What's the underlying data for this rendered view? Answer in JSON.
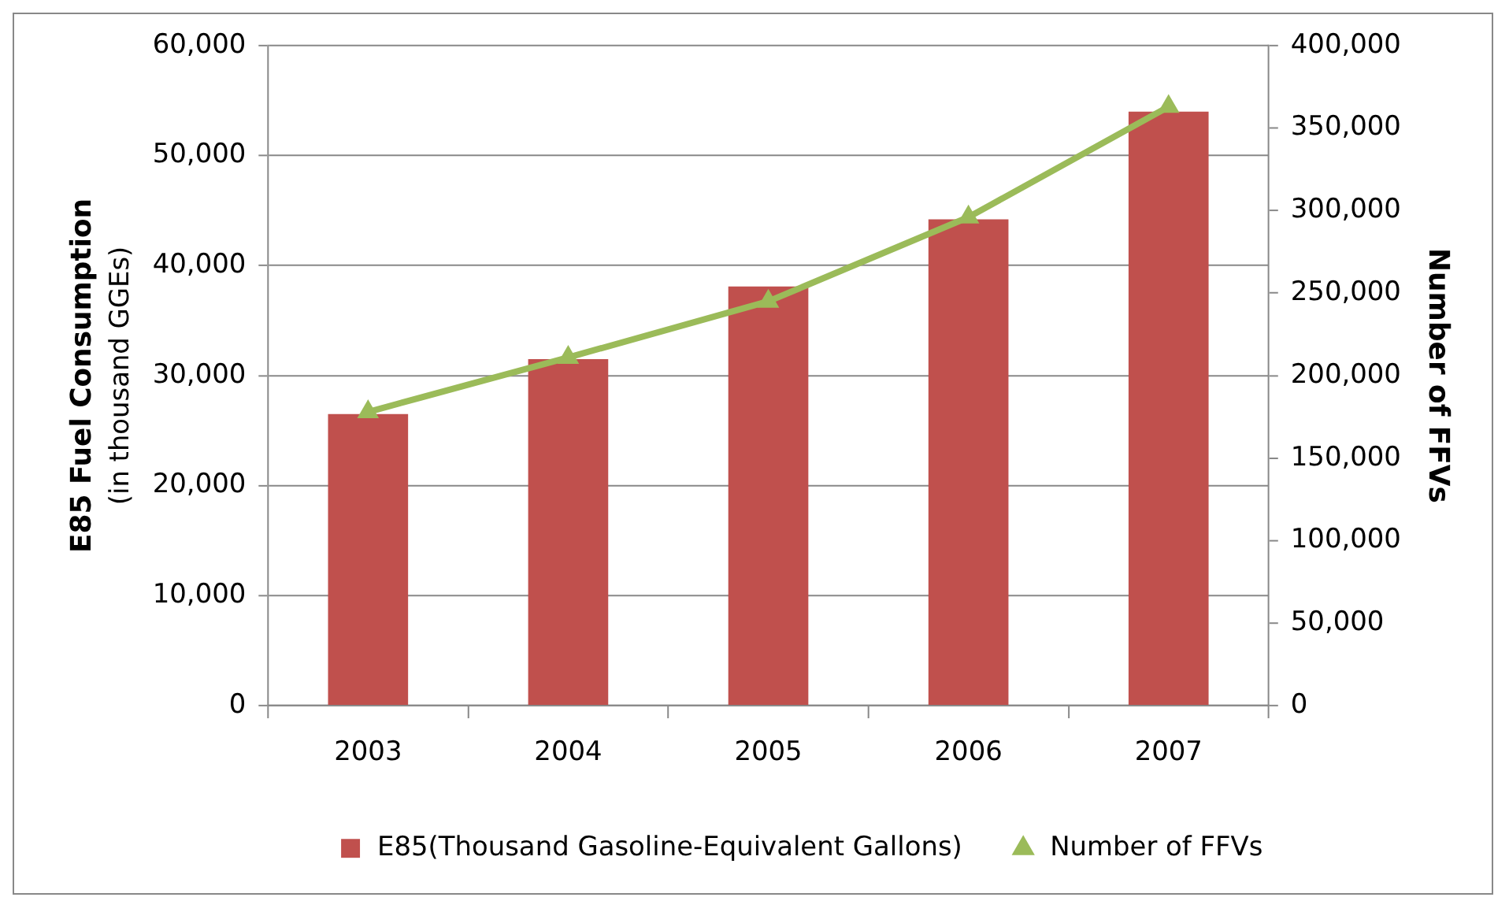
{
  "chart_data": {
    "type": "bar",
    "categories": [
      "2003",
      "2004",
      "2005",
      "2006",
      "2007"
    ],
    "series": [
      {
        "name": "E85(Thousand Gasoline-Equivalent Gallons)",
        "color": "#c0504d",
        "values": [
          26500,
          31500,
          38100,
          44200,
          54000
        ]
      },
      {
        "name": "Number of FFVs",
        "type": "line",
        "axis": "y2",
        "color": "#9bbb59",
        "values": [
          178000,
          211000,
          245000,
          296000,
          363000
        ]
      }
    ],
    "ylabel": "E85 Fuel Consumption (in thousand GGEs)",
    "y2label": "Number of FFVs",
    "ylim": [
      0,
      60000
    ],
    "yticks": [
      0,
      {
        "value": 10000,
        "label": "10,000"
      },
      {
        "value": 20000,
        "label": "20,000"
      },
      {
        "value": 30000,
        "label": "30,000"
      },
      {
        "value": 40000,
        "label": "40,000"
      },
      {
        "value": 50000,
        "label": "50,000"
      },
      {
        "value": 60000,
        "label": "60,000"
      }
    ],
    "y2lim": [
      0,
      400000
    ],
    "y2ticks": [
      0,
      {
        "value": 50000,
        "label": "50,000"
      },
      {
        "value": 100000,
        "label": "100,000"
      },
      {
        "value": 150000,
        "label": "150,000"
      },
      {
        "value": 200000,
        "label": "200,000"
      },
      {
        "value": 250000,
        "label": "250,000"
      },
      {
        "value": 300000,
        "label": "300,000"
      },
      {
        "value": 350000,
        "label": "350,000"
      },
      {
        "value": 400000,
        "label": "400,000"
      }
    ],
    "grid": "y",
    "legend": "bottom",
    "marker": "triangle",
    "line_style": "solid"
  }
}
